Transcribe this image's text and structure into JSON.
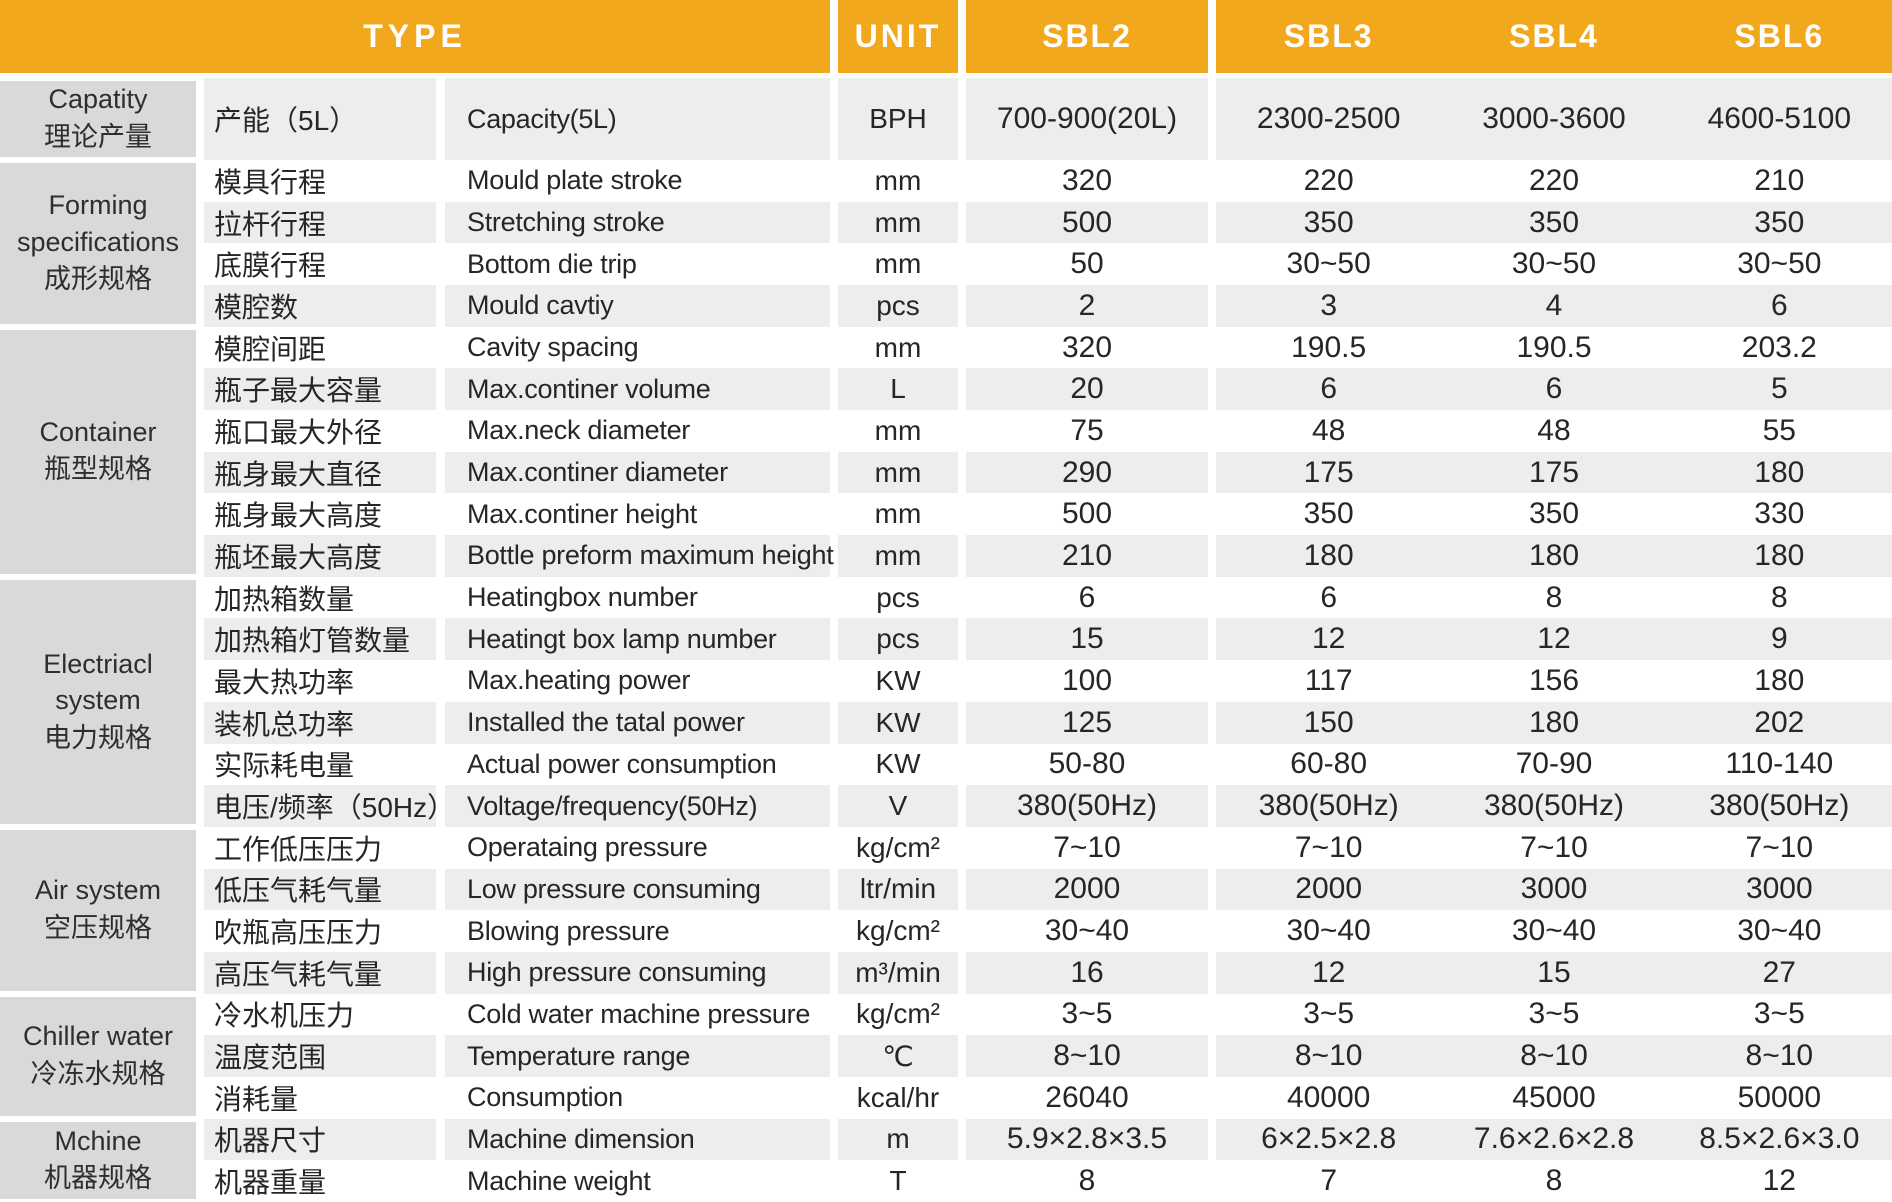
{
  "header": {
    "type_label": "TYPE",
    "unit_label": "UNIT",
    "models": [
      "SBL2",
      "SBL3",
      "SBL4",
      "SBL6"
    ]
  },
  "colors": {
    "header_bg": "#F2A81C",
    "header_text": "#FFFFFF",
    "group_cell_bg": "#D9D9D9",
    "stripe_gray": "#EDEDED",
    "stripe_white": "#FFFFFF",
    "body_text": "#262626"
  },
  "groups": [
    {
      "name_en": "Capatity",
      "name_cn": "理论产量",
      "rows": [
        {
          "cn": "产能（5L）",
          "en": "Capacity(5L)",
          "unit": "BPH",
          "values": [
            "700-900(20L)",
            "2300-2500",
            "3000-3600",
            "4600-5100"
          ]
        }
      ]
    },
    {
      "name_en": "Forming specifications",
      "name_cn": "成形规格",
      "rows": [
        {
          "cn": "模具行程",
          "en": "Mould plate stroke",
          "unit": "mm",
          "values": [
            "320",
            "220",
            "220",
            "210"
          ]
        },
        {
          "cn": "拉杆行程",
          "en": "Stretching stroke",
          "unit": "mm",
          "values": [
            "500",
            "350",
            "350",
            "350"
          ]
        },
        {
          "cn": "底膜行程",
          "en": "Bottom die trip",
          "unit": "mm",
          "values": [
            "50",
            "30~50",
            "30~50",
            "30~50"
          ]
        },
        {
          "cn": "模腔数",
          "en": "Mould cavtiy",
          "unit": "pcs",
          "values": [
            "2",
            "3",
            "4",
            "6"
          ]
        }
      ]
    },
    {
      "name_en": "Container",
      "name_cn": "瓶型规格",
      "rows": [
        {
          "cn": "模腔间距",
          "en": "Cavity spacing",
          "unit": "mm",
          "values": [
            "320",
            "190.5",
            "190.5",
            "203.2"
          ]
        },
        {
          "cn": "瓶子最大容量",
          "en": "Max.continer volume",
          "unit": "L",
          "values": [
            "20",
            "6",
            "6",
            "5"
          ]
        },
        {
          "cn": "瓶口最大外径",
          "en": "Max.neck diameter",
          "unit": "mm",
          "values": [
            "75",
            "48",
            "48",
            "55"
          ]
        },
        {
          "cn": "瓶身最大直径",
          "en": "Max.continer diameter",
          "unit": "mm",
          "values": [
            "290",
            "175",
            "175",
            "180"
          ]
        },
        {
          "cn": "瓶身最大高度",
          "en": "Max.continer height",
          "unit": "mm",
          "values": [
            "500",
            "350",
            "350",
            "330"
          ]
        },
        {
          "cn": "瓶坯最大高度",
          "en": "Bottle preform maximum height",
          "unit": "mm",
          "values": [
            "210",
            "180",
            "180",
            "180"
          ]
        }
      ]
    },
    {
      "name_en": "Electriacl system",
      "name_cn": "电力规格",
      "rows": [
        {
          "cn": "加热箱数量",
          "en": "Heatingbox number",
          "unit": "pcs",
          "values": [
            "6",
            "6",
            "8",
            "8"
          ]
        },
        {
          "cn": "加热箱灯管数量",
          "en": "Heatingt box lamp number",
          "unit": "pcs",
          "values": [
            "15",
            "12",
            "12",
            "9"
          ]
        },
        {
          "cn": "最大热功率",
          "en": "Max.heating power",
          "unit": "KW",
          "values": [
            "100",
            "117",
            "156",
            "180"
          ]
        },
        {
          "cn": "装机总功率",
          "en": "Installed the tatal power",
          "unit": "KW",
          "values": [
            "125",
            "150",
            "180",
            "202"
          ]
        },
        {
          "cn": "实际耗电量",
          "en": "Actual power consumption",
          "unit": "KW",
          "values": [
            "50-80",
            "60-80",
            "70-90",
            "110-140"
          ]
        },
        {
          "cn": "电压/频率（50Hz）",
          "en": "Voltage/frequency(50Hz)",
          "unit": "V",
          "values": [
            "380(50Hz)",
            "380(50Hz)",
            "380(50Hz)",
            "380(50Hz)"
          ]
        }
      ]
    },
    {
      "name_en": "Air system",
      "name_cn": "空压规格",
      "rows": [
        {
          "cn": "工作低压压力",
          "en": "Operataing pressure",
          "unit": "kg/cm²",
          "values": [
            "7~10",
            "7~10",
            "7~10",
            "7~10"
          ]
        },
        {
          "cn": "低压气耗气量",
          "en": "Low pressure consuming",
          "unit": "ltr/min",
          "values": [
            "2000",
            "2000",
            "3000",
            "3000"
          ]
        },
        {
          "cn": "吹瓶高压压力",
          "en": "Blowing pressure",
          "unit": "kg/cm²",
          "values": [
            "30~40",
            "30~40",
            "30~40",
            "30~40"
          ]
        },
        {
          "cn": "高压气耗气量",
          "en": "High pressure consuming",
          "unit": "m³/min",
          "values": [
            "16",
            "12",
            "15",
            "27"
          ]
        }
      ]
    },
    {
      "name_en": "Chiller water",
      "name_cn": "冷冻水规格",
      "rows": [
        {
          "cn": "冷水机压力",
          "en": "Cold water machine pressure",
          "unit": "kg/cm²",
          "values": [
            "3~5",
            "3~5",
            "3~5",
            "3~5"
          ]
        },
        {
          "cn": "温度范围",
          "en": "Temperature range",
          "unit": "℃",
          "values": [
            "8~10",
            "8~10",
            "8~10",
            "8~10"
          ]
        },
        {
          "cn": "消耗量",
          "en": "Consumption",
          "unit": "kcal/hr",
          "values": [
            "26040",
            "40000",
            "45000",
            "50000"
          ]
        }
      ]
    },
    {
      "name_en": "Mchine",
      "name_cn": "机器规格",
      "rows": [
        {
          "cn": "机器尺寸",
          "en": "Machine dimension",
          "unit": "m",
          "values": [
            "5.9×2.8×3.5",
            "6×2.5×2.8",
            "7.6×2.6×2.8",
            "8.5×2.6×3.0"
          ]
        },
        {
          "cn": "机器重量",
          "en": "Machine weight",
          "unit": "T",
          "values": [
            "8",
            "7",
            "8",
            "12"
          ]
        }
      ]
    }
  ]
}
